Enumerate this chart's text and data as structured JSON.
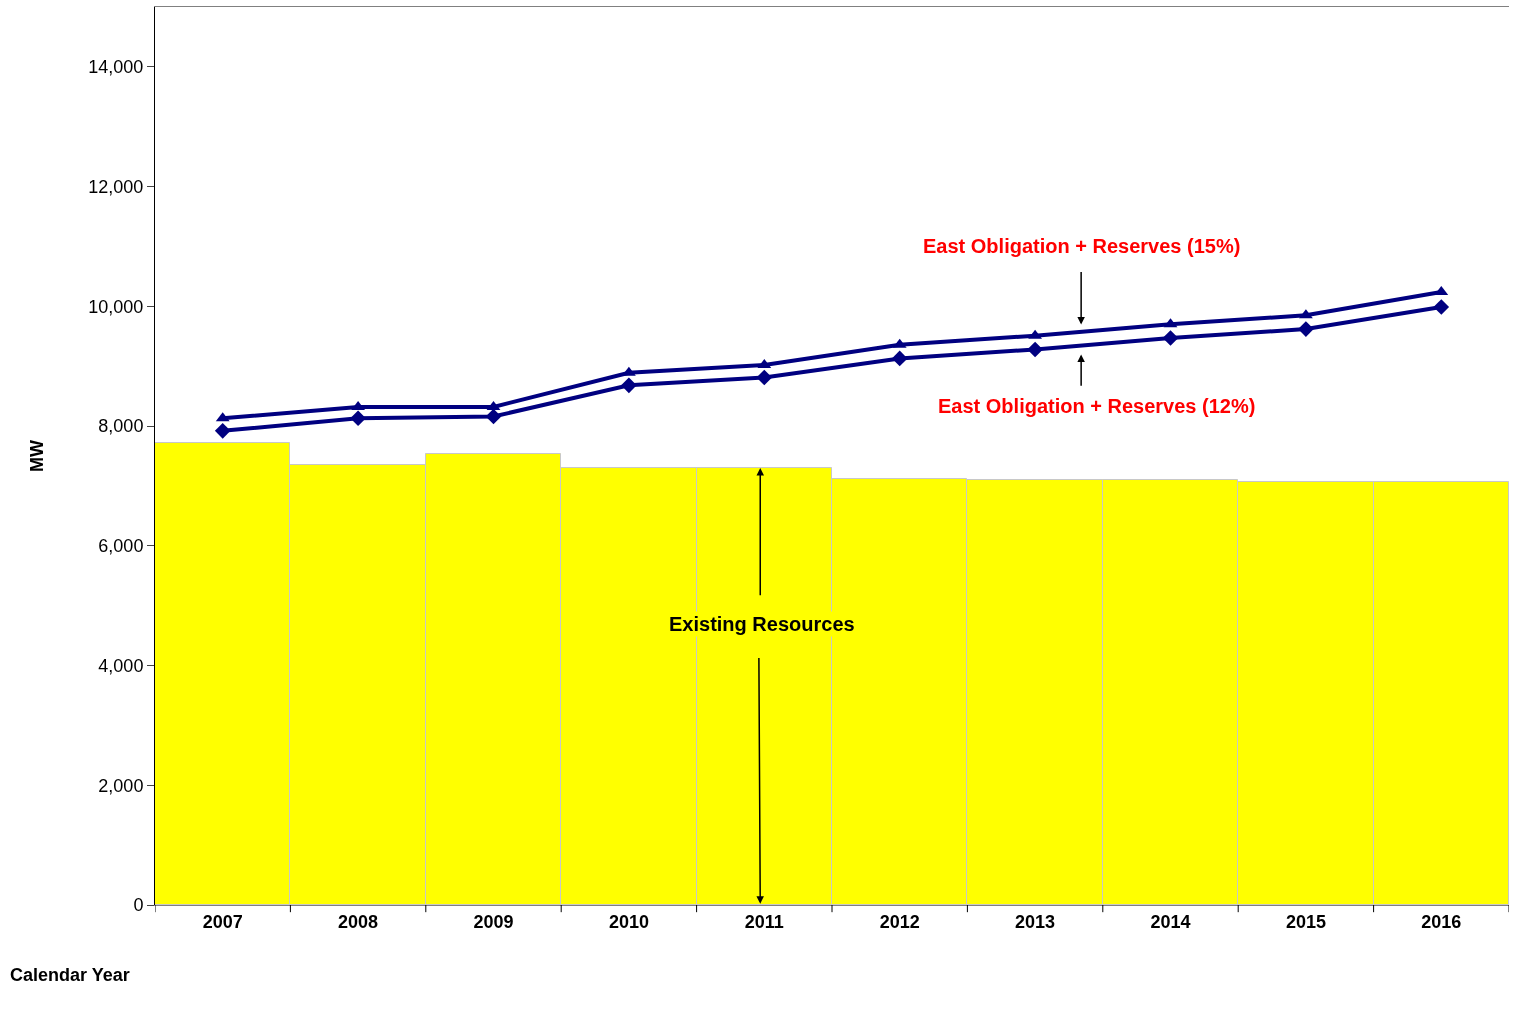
{
  "chart_data": {
    "type": "bar",
    "xlabel": "Calendar Year",
    "ylabel": "MW",
    "categories": [
      "2007",
      "2008",
      "2009",
      "2010",
      "2011",
      "2012",
      "2013",
      "2014",
      "2015",
      "2016"
    ],
    "series": [
      {
        "name": "Existing Resources",
        "color": "#ffff00",
        "values": [
          7720,
          7350,
          7530,
          7300,
          7300,
          7110,
          7100,
          7100,
          7070,
          7070
        ]
      },
      {
        "name": "East Obligation + Reserves (15%)",
        "type": "line",
        "color": "#000080",
        "marker": "triangle",
        "values": [
          8130,
          8320,
          8320,
          8890,
          9020,
          9360,
          9510,
          9700,
          9850,
          10240
        ]
      },
      {
        "name": "East Obligation + Reserves (12%)",
        "type": "line",
        "color": "#000080",
        "marker": "diamond",
        "values": [
          7920,
          8130,
          8160,
          8680,
          8810,
          9130,
          9280,
          9470,
          9620,
          9990
        ]
      }
    ],
    "ylim": [
      0,
      15000
    ],
    "yticks": [
      {
        "value": 0,
        "label": "0"
      },
      {
        "value": 2000,
        "label": "2,000"
      },
      {
        "value": 4000,
        "label": "4,000"
      },
      {
        "value": 6000,
        "label": "6,000"
      },
      {
        "value": 8000,
        "label": "8,000"
      },
      {
        "value": 10000,
        "label": "10,000"
      },
      {
        "value": 12000,
        "label": "12,000"
      },
      {
        "value": 14000,
        "label": "14,000"
      }
    ],
    "legend": false
  }
}
